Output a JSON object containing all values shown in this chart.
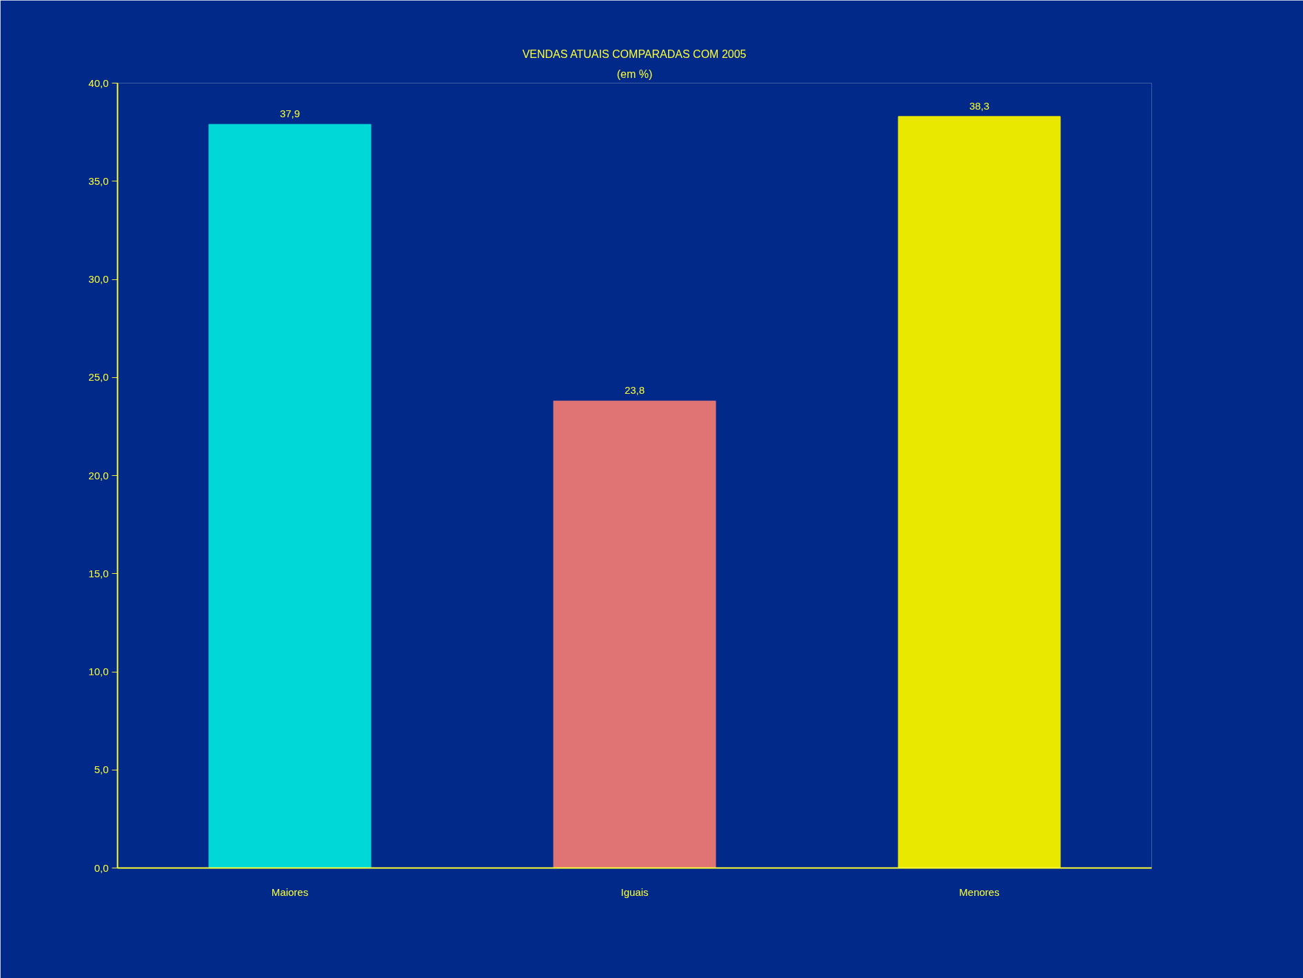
{
  "chart_data": {
    "type": "bar",
    "title": "VENDAS ATUAIS COMPARADAS COM 2005",
    "subtitle": "(em %)",
    "categories": [
      "Maiores",
      "Iguais",
      "Menores"
    ],
    "values": [
      37.9,
      23.8,
      38.3
    ],
    "colors": [
      "#00d8d8",
      "#e07474",
      "#e8e800"
    ],
    "value_labels": [
      "37,9",
      "23,8",
      "38,3"
    ],
    "ylim": [
      0,
      40
    ],
    "yticks": [
      {
        "value": 0,
        "label": "0,0"
      },
      {
        "value": 5,
        "label": "5,0"
      },
      {
        "value": 10,
        "label": "10,0"
      },
      {
        "value": 15,
        "label": "15,0"
      },
      {
        "value": 20,
        "label": "20,0"
      },
      {
        "value": 25,
        "label": "25,0"
      },
      {
        "value": 30,
        "label": "30,0"
      },
      {
        "value": 35,
        "label": "35,0"
      },
      {
        "value": 40,
        "label": "40,0"
      }
    ],
    "grid": false
  }
}
